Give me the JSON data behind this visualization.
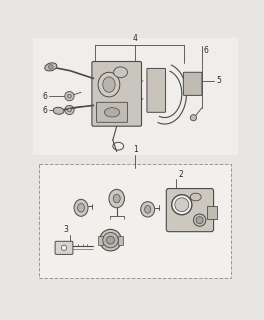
{
  "bg_color": "#f0eeea",
  "line_color": "#4a4a4a",
  "dark": "#2a2a2a",
  "fig_bg": "#e8e6e2",
  "upper_bg": "#f0eeea",
  "lower_bg": "#f2f0ec"
}
